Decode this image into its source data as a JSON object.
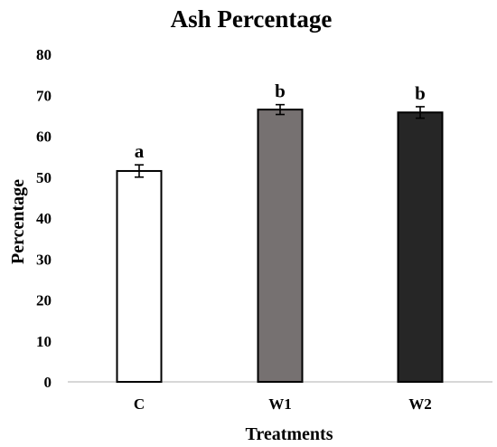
{
  "chart_data": {
    "type": "bar",
    "title": "Ash Percentage",
    "xlabel": "Treatments",
    "ylabel": "Percentage",
    "categories": [
      "C",
      "W1",
      "W2"
    ],
    "values": [
      51.5,
      66.5,
      65.8
    ],
    "errors": [
      1.5,
      1.2,
      1.4
    ],
    "significance_labels": [
      "a",
      "b",
      "b"
    ],
    "bar_colors": [
      "#ffffff",
      "#767171",
      "#262626"
    ],
    "bar_outline": "#000000",
    "ylim": [
      0,
      80
    ],
    "yticks": [
      0,
      10,
      20,
      30,
      40,
      50,
      60,
      70,
      80
    ],
    "grid": false,
    "legend": "none"
  }
}
